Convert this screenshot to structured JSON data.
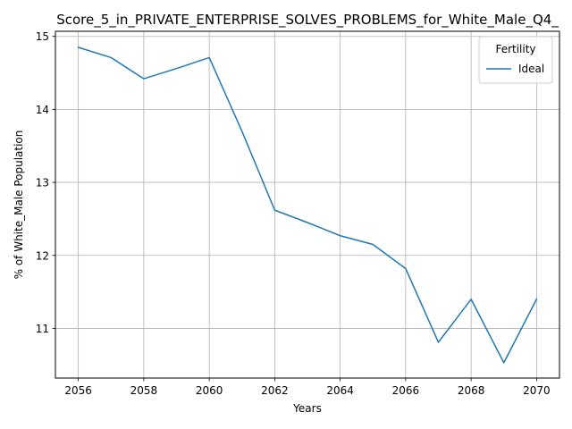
{
  "chart_data": {
    "type": "line",
    "title": "Score_5_in_PRIVATE_ENTERPRISE_SOLVES_PROBLEMS_for_White_Male_Q4_",
    "xlabel": "Years",
    "ylabel": "% of White_Male Population",
    "xlim": [
      2055.3,
      2070.7
    ],
    "ylim": [
      10.32,
      15.07
    ],
    "x_ticks": [
      2056,
      2058,
      2060,
      2062,
      2064,
      2066,
      2068,
      2070
    ],
    "y_ticks": [
      11,
      12,
      13,
      14,
      15
    ],
    "grid": true,
    "legend": {
      "title": "Fertility",
      "placement": "top-right"
    },
    "x": [
      2056,
      2057,
      2058,
      2059,
      2060,
      2061,
      2062,
      2063,
      2064,
      2065,
      2066,
      2067,
      2068,
      2069,
      2070
    ],
    "series": [
      {
        "name": "Ideal",
        "color": "#1f77b4",
        "values": [
          14.85,
          14.71,
          14.42,
          14.56,
          14.71,
          13.7,
          12.62,
          12.45,
          12.27,
          12.15,
          11.82,
          10.81,
          11.4,
          10.53,
          11.4
        ]
      }
    ]
  }
}
